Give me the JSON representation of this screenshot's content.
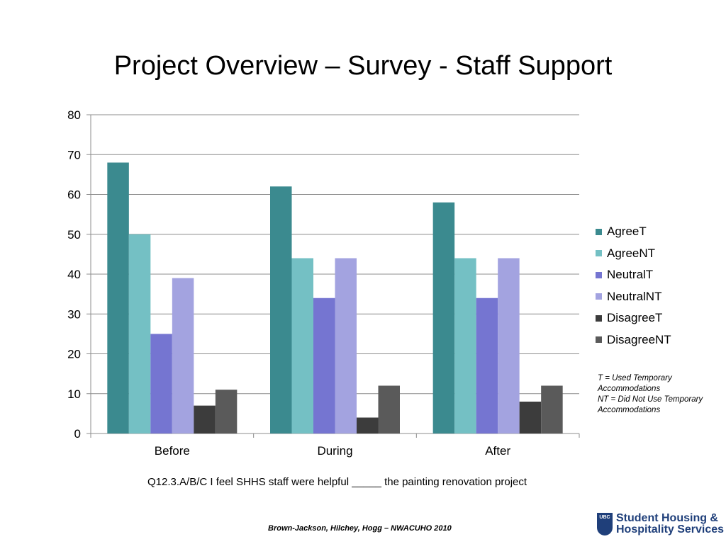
{
  "slide": {
    "title": "Project Overview – Survey - Staff Support",
    "caption": "Q12.3.A/B/C I feel SHHS staff were helpful _____ the painting renovation project",
    "note_lines": [
      "T = Used Temporary Accommodations",
      "NT = Did Not Use Temporary Accommodations"
    ],
    "footer": "Brown-Jackson, Hilchey, Hogg – NWACUHO 2010",
    "logo": {
      "crest_text": "UBC",
      "line1": "Student Housing &",
      "line2": "Hospitality Services"
    }
  },
  "chart_data": {
    "type": "bar",
    "title": "",
    "xlabel": "",
    "ylabel": "",
    "categories": [
      "Before",
      "During",
      "After"
    ],
    "ylim": [
      0,
      80
    ],
    "yticks": [
      "0",
      "10",
      "20",
      "30",
      "40",
      "50",
      "60",
      "70",
      "80"
    ],
    "grid": true,
    "legend_position": "right",
    "series": [
      {
        "name": "AgreeT",
        "color": "#3b8a8f",
        "values": [
          68,
          62,
          58
        ]
      },
      {
        "name": "AgreeNT",
        "color": "#74c0c4",
        "values": [
          50,
          44,
          44
        ]
      },
      {
        "name": "NeutralT",
        "color": "#7575d1",
        "values": [
          25,
          34,
          34
        ]
      },
      {
        "name": "NeutralNT",
        "color": "#a3a3e0",
        "values": [
          39,
          44,
          44
        ]
      },
      {
        "name": "DisagreeT",
        "color": "#3c3c3c",
        "values": [
          7,
          4,
          8
        ]
      },
      {
        "name": "DisagreeNT",
        "color": "#5a5a5a",
        "values": [
          11,
          12,
          12
        ]
      }
    ]
  }
}
